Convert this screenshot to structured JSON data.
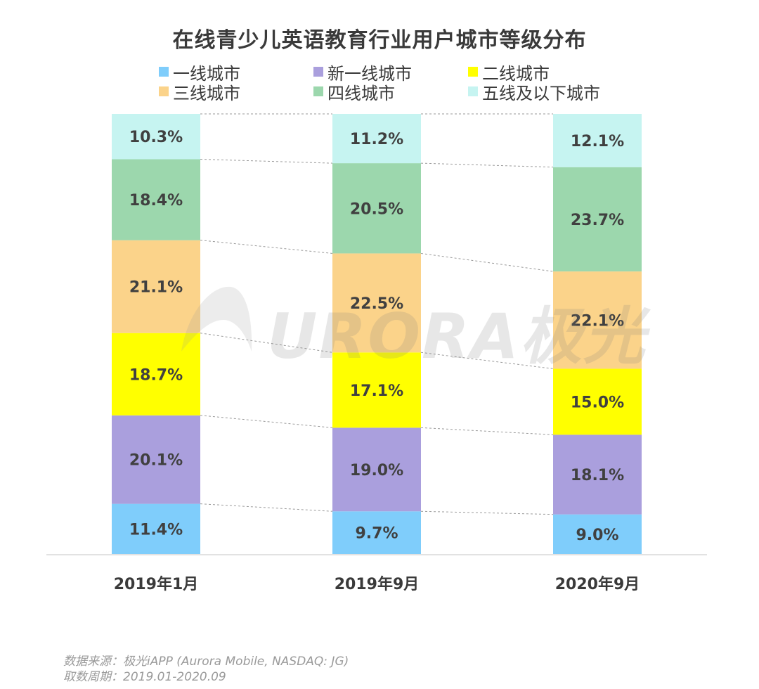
{
  "chart_data": {
    "type": "bar",
    "stacked": true,
    "title": "在线青少儿英语教育行业用户城市等级分布",
    "categories": [
      "2019年1月",
      "2019年9月",
      "2020年9月"
    ],
    "series": [
      {
        "name": "一线城市",
        "color": "#7fcdfb",
        "values": [
          11.4,
          9.7,
          9.0
        ],
        "labels": [
          "11.4%",
          "9.7%",
          "9.0%"
        ]
      },
      {
        "name": "新一线城市",
        "color": "#aa9fdd",
        "values": [
          20.1,
          19.0,
          18.1
        ],
        "labels": [
          "20.1%",
          "19.0%",
          "18.1%"
        ]
      },
      {
        "name": "二线城市",
        "color": "#ffff00",
        "values": [
          18.7,
          17.1,
          15.0
        ],
        "labels": [
          "18.7%",
          "17.1%",
          "15.0%"
        ]
      },
      {
        "name": "三线城市",
        "color": "#fbd38a",
        "values": [
          21.1,
          22.5,
          22.1
        ],
        "labels": [
          "21.1%",
          "22.5%",
          "22.1%"
        ]
      },
      {
        "name": "四线城市",
        "color": "#9cd7ad",
        "values": [
          18.4,
          20.5,
          23.7
        ],
        "labels": [
          "18.4%",
          "20.5%",
          "23.7%"
        ]
      },
      {
        "name": "五线及以下城市",
        "color": "#c6f4f1",
        "values": [
          10.3,
          11.2,
          12.1
        ],
        "labels": [
          "10.3%",
          "11.2%",
          "12.1%"
        ]
      }
    ],
    "ylim": [
      0,
      100
    ],
    "grid": false,
    "legend_position": "top"
  },
  "watermark": {
    "text": "URORA极光"
  },
  "footer": {
    "source": "数据来源：极光iAPP (Aurora Mobile, NASDAQ: JG)",
    "period": "取数周期：2019.01-2020.09"
  }
}
